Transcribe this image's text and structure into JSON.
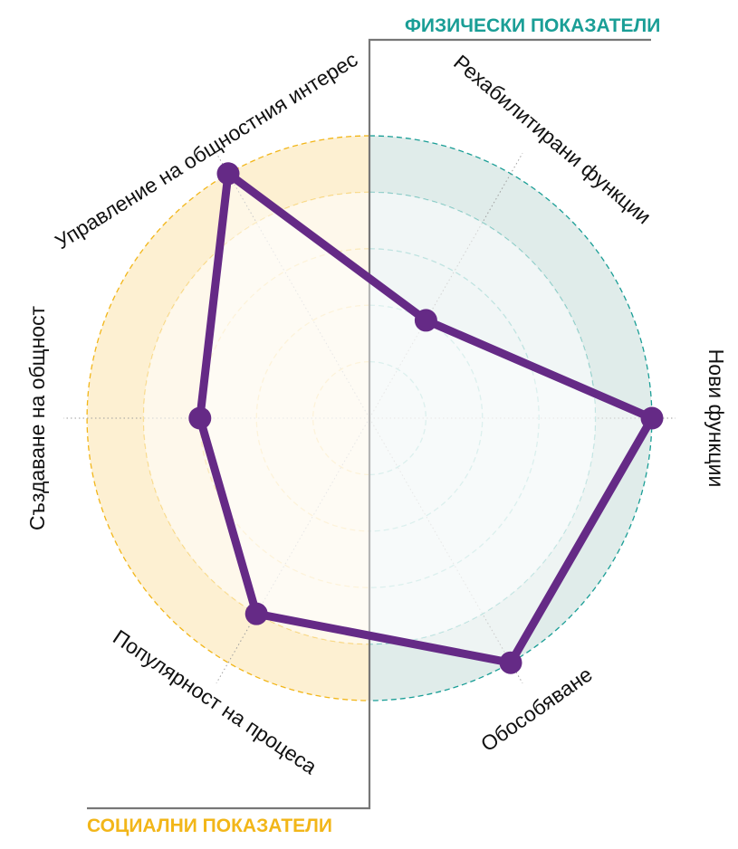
{
  "chart_data": {
    "type": "radar",
    "groups": [
      {
        "title": "ФИЗИЧЕСКИ ПОКАЗАТЕЛИ",
        "side": "right",
        "color": "#1a9e96",
        "fill": "#e0ecea"
      },
      {
        "title": "СОЦИАЛНИ ПОКАЗАТЕЛИ",
        "side": "left",
        "color": "#f2b619",
        "fill": "#fdf0d2"
      }
    ],
    "axes": [
      {
        "label": "Рехабилитирани функции",
        "angle_deg": 30,
        "value": 2
      },
      {
        "label": "Нови функции",
        "angle_deg": 90,
        "value": 5
      },
      {
        "label": "Обособяване",
        "angle_deg": 150,
        "value": 5
      },
      {
        "label": "Популярност на процеса",
        "angle_deg": 210,
        "value": 4
      },
      {
        "label": "Създаване на общност",
        "angle_deg": 270,
        "value": 3
      },
      {
        "label": "Управление на общностния интерес",
        "angle_deg": 330,
        "value": 5
      }
    ],
    "levels": 5,
    "range": [
      0,
      5
    ],
    "series_color": "#652a86",
    "grid_color": "#9e9e9e"
  }
}
